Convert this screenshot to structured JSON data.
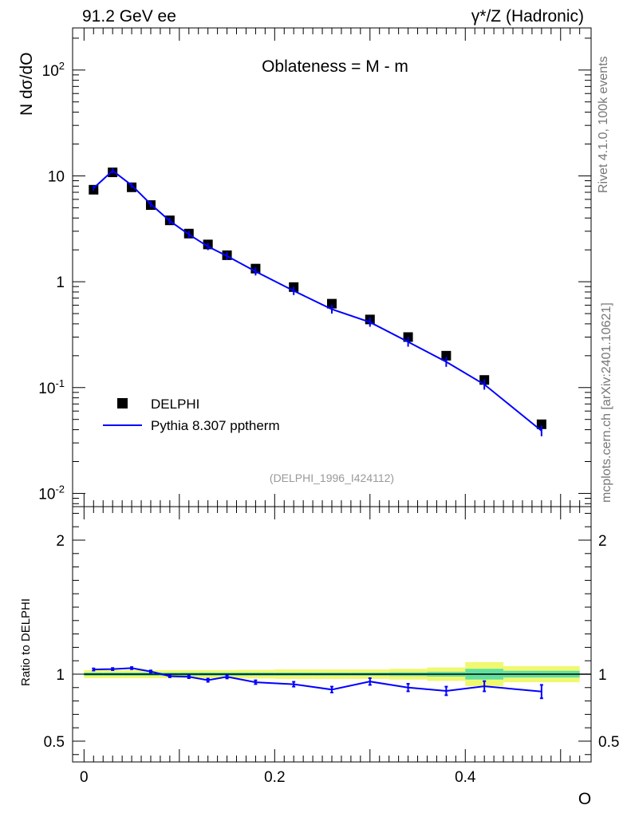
{
  "header": {
    "left": "91.2 GeV ee",
    "right": "γ*/Z (Hadronic)"
  },
  "side_labels": {
    "events": "Rivet 4.1.0,  100k events",
    "source": "mcplots.cern.ch [arXiv:2401.10621]"
  },
  "colors": {
    "data": "#000000",
    "mc": "#0000ff",
    "band_inner": "#5fe0a0",
    "band_outer": "#f0f870"
  },
  "chart_data": [
    {
      "type": "scatter",
      "title": "Oblateness = M - m",
      "ylabel": "N  dσ/dO",
      "xlabel": "",
      "yscale": "log",
      "ylim": [
        0.0075,
        250
      ],
      "xlim": [
        -0.012,
        0.532
      ],
      "ytick_labels": [
        "10^-2",
        "10^-1",
        "1",
        "10",
        "10^2"
      ],
      "watermark": "(DELPHI_1996_I424112)",
      "legend": {
        "position": "lower-left",
        "entries": [
          "DELPHI",
          "Pythia 8.307 pptherm"
        ]
      },
      "series": [
        {
          "name": "DELPHI",
          "style": "markers",
          "x": [
            0.01,
            0.03,
            0.05,
            0.07,
            0.09,
            0.11,
            0.13,
            0.15,
            0.18,
            0.22,
            0.26,
            0.3,
            0.34,
            0.38,
            0.42,
            0.48
          ],
          "y": [
            7.4,
            10.8,
            7.8,
            5.3,
            3.8,
            2.85,
            2.25,
            1.78,
            1.33,
            0.89,
            0.62,
            0.44,
            0.3,
            0.2,
            0.118,
            0.045
          ]
        },
        {
          "name": "Pythia 8.307 pptherm",
          "style": "line",
          "x": [
            0.01,
            0.03,
            0.05,
            0.07,
            0.09,
            0.11,
            0.13,
            0.15,
            0.18,
            0.22,
            0.26,
            0.3,
            0.34,
            0.38,
            0.42,
            0.48
          ],
          "y": [
            7.65,
            11.2,
            8.15,
            5.4,
            3.75,
            2.8,
            2.15,
            1.75,
            1.25,
            0.82,
            0.55,
            0.415,
            0.27,
            0.175,
            0.107,
            0.039
          ]
        }
      ]
    },
    {
      "type": "line",
      "title": "",
      "ylabel": "Ratio to DELPHI",
      "xlabel": "O",
      "ylim": [
        0.345,
        2.25
      ],
      "xlim": [
        -0.012,
        0.532
      ],
      "ytick_labels": [
        "0.5",
        "1",
        "2"
      ],
      "xtick_labels": [
        "0",
        "0.2",
        "0.4"
      ],
      "series": [
        {
          "name": "Pythia 8.307 pptherm / DELPHI",
          "x": [
            0.01,
            0.03,
            0.05,
            0.07,
            0.09,
            0.11,
            0.13,
            0.15,
            0.18,
            0.22,
            0.26,
            0.3,
            0.34,
            0.38,
            0.42,
            0.48
          ],
          "y": [
            1.035,
            1.038,
            1.045,
            1.02,
            0.985,
            0.98,
            0.955,
            0.98,
            0.94,
            0.925,
            0.885,
            0.945,
            0.9,
            0.875,
            0.91,
            0.87
          ],
          "err": [
            0.008,
            0.008,
            0.008,
            0.008,
            0.008,
            0.01,
            0.012,
            0.012,
            0.014,
            0.018,
            0.022,
            0.025,
            0.028,
            0.032,
            0.038,
            0.05
          ]
        }
      ],
      "data_band": {
        "edges": [
          0.0,
          0.02,
          0.04,
          0.06,
          0.08,
          0.1,
          0.12,
          0.14,
          0.16,
          0.2,
          0.24,
          0.28,
          0.32,
          0.36,
          0.4,
          0.44,
          0.52
        ],
        "inner": [
          0.012,
          0.012,
          0.012,
          0.012,
          0.012,
          0.012,
          0.012,
          0.012,
          0.012,
          0.012,
          0.012,
          0.012,
          0.014,
          0.018,
          0.04,
          0.025
        ],
        "outer": [
          0.03,
          0.03,
          0.03,
          0.03,
          0.03,
          0.03,
          0.03,
          0.03,
          0.032,
          0.035,
          0.035,
          0.035,
          0.04,
          0.05,
          0.09,
          0.06
        ]
      }
    }
  ]
}
